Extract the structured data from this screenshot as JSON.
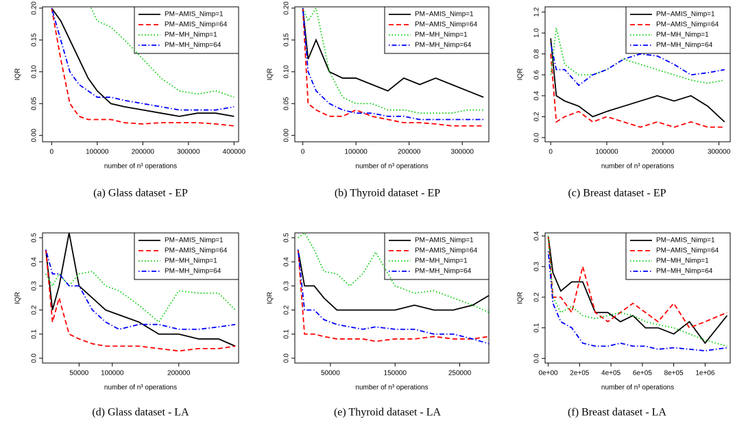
{
  "chart_data": [
    {
      "type": "line",
      "caption": "(a) Glass dataset - EP",
      "xlabel": "number of n³ operations",
      "ylabel": "IQR",
      "xlim": [
        -20000,
        410000
      ],
      "ylim": [
        -0.01,
        0.202
      ],
      "xticks": [
        0,
        100000,
        200000,
        300000,
        400000
      ],
      "yticks": [
        {
          "value": 0,
          "label": "0.00"
        },
        0.05,
        {
          "value": 0.1,
          "label": "0.10"
        },
        0.15,
        {
          "value": 0.2,
          "label": "0.20"
        }
      ],
      "legend": "top-right",
      "x": [
        0,
        20000,
        40000,
        60000,
        80000,
        100000,
        130000,
        160000,
        200000,
        240000,
        280000,
        320000,
        360000,
        400000
      ],
      "series": [
        {
          "name": "PM−AMIS_Nimp=1",
          "color": "#000000",
          "dash": "solid",
          "values": [
            0.2,
            0.18,
            0.15,
            0.12,
            0.09,
            0.07,
            0.05,
            0.045,
            0.04,
            0.035,
            0.03,
            0.035,
            0.035,
            0.03
          ]
        },
        {
          "name": "PM−AMIS_Nimp=64",
          "color": "#ff0000",
          "dash": "dashed",
          "values": [
            0.2,
            0.12,
            0.05,
            0.03,
            0.025,
            0.025,
            0.025,
            0.02,
            0.018,
            0.02,
            0.02,
            0.02,
            0.018,
            0.015
          ]
        },
        {
          "name": "PM−MH_Nimp=1",
          "color": "#00cc00",
          "dash": "dotted",
          "values": [
            0.21,
            0.21,
            0.21,
            0.21,
            0.21,
            0.18,
            0.17,
            0.15,
            0.12,
            0.09,
            0.07,
            0.065,
            0.07,
            0.06
          ]
        },
        {
          "name": "PM−MH_Nimp=64",
          "color": "#0000ff",
          "dash": "dotdash",
          "values": [
            0.2,
            0.15,
            0.1,
            0.08,
            0.07,
            0.06,
            0.06,
            0.055,
            0.05,
            0.045,
            0.04,
            0.04,
            0.04,
            0.045
          ]
        }
      ]
    },
    {
      "type": "line",
      "caption": "(b) Thyroid dataset - EP",
      "xlabel": "number of n³ operations",
      "ylabel": "IQR",
      "xlim": [
        -15000,
        350000
      ],
      "ylim": [
        -0.01,
        0.202
      ],
      "xticks": [
        0,
        100000,
        200000,
        300000
      ],
      "yticks": [
        {
          "value": 0,
          "label": "0.00"
        },
        0.05,
        {
          "value": 0.1,
          "label": "0.10"
        },
        0.15,
        {
          "value": 0.2,
          "label": "0.20"
        }
      ],
      "legend": "top-right",
      "x": [
        0,
        10000,
        25000,
        50000,
        75000,
        100000,
        130000,
        160000,
        190000,
        220000,
        250000,
        280000,
        310000,
        340000
      ],
      "series": [
        {
          "name": "PM−AMIS_Nimp=1",
          "color": "#000000",
          "dash": "solid",
          "values": [
            0.2,
            0.12,
            0.15,
            0.1,
            0.09,
            0.09,
            0.08,
            0.07,
            0.09,
            0.08,
            0.09,
            0.08,
            0.07,
            0.06
          ]
        },
        {
          "name": "PM−AMIS_Nimp=64",
          "color": "#ff0000",
          "dash": "dashed",
          "values": [
            0.2,
            0.05,
            0.04,
            0.03,
            0.03,
            0.04,
            0.03,
            0.025,
            0.02,
            0.02,
            0.018,
            0.015,
            0.015,
            0.015
          ]
        },
        {
          "name": "PM−MH_Nimp=1",
          "color": "#00cc00",
          "dash": "dotted",
          "values": [
            0.2,
            0.18,
            0.2,
            0.1,
            0.06,
            0.05,
            0.05,
            0.04,
            0.04,
            0.035,
            0.035,
            0.035,
            0.04,
            0.04
          ]
        },
        {
          "name": "PM−MH_Nimp=64",
          "color": "#0000ff",
          "dash": "dotdash",
          "values": [
            0.2,
            0.1,
            0.07,
            0.05,
            0.04,
            0.035,
            0.035,
            0.03,
            0.03,
            0.025,
            0.025,
            0.025,
            0.025,
            0.025
          ]
        }
      ]
    },
    {
      "type": "line",
      "caption": "(c) Breast dataset - EP",
      "xlabel": "number of n³ operations",
      "ylabel": "IQR",
      "xlim": [
        -10000,
        320000
      ],
      "ylim": [
        -0.04,
        1.25
      ],
      "xticks": [
        0,
        100000,
        200000,
        300000
      ],
      "yticks": [
        {
          "value": 0,
          "label": "0.0"
        },
        0.2,
        0.4,
        0.6,
        0.8,
        {
          "value": 1,
          "label": "1.0"
        },
        1.2
      ],
      "legend": "top-right",
      "x": [
        0,
        10000,
        25000,
        50000,
        75000,
        100000,
        130000,
        160000,
        190000,
        220000,
        250000,
        280000,
        310000
      ],
      "series": [
        {
          "name": "PM−AMIS_Nimp=1",
          "color": "#000000",
          "dash": "solid",
          "values": [
            0.95,
            0.4,
            0.35,
            0.3,
            0.2,
            0.25,
            0.3,
            0.35,
            0.4,
            0.35,
            0.4,
            0.3,
            0.15
          ]
        },
        {
          "name": "PM−AMIS_Nimp=64",
          "color": "#ff0000",
          "dash": "dashed",
          "values": [
            0.8,
            0.15,
            0.2,
            0.25,
            0.15,
            0.2,
            0.15,
            0.1,
            0.15,
            0.1,
            0.15,
            0.1,
            0.1
          ]
        },
        {
          "name": "PM−MH_Nimp=1",
          "color": "#00cc00",
          "dash": "dotted",
          "values": [
            0.6,
            1.05,
            0.7,
            0.6,
            0.6,
            0.65,
            0.75,
            0.7,
            0.65,
            0.6,
            0.55,
            0.52,
            0.55
          ]
        },
        {
          "name": "PM−MH_Nimp=64",
          "color": "#0000ff",
          "dash": "dotdash",
          "values": [
            0.9,
            0.65,
            0.65,
            0.5,
            0.6,
            0.65,
            0.75,
            0.8,
            0.78,
            0.7,
            0.6,
            0.62,
            0.65
          ]
        }
      ]
    },
    {
      "type": "line",
      "caption": "(d) Glass dataset - LA",
      "xlabel": "number of n³ operations",
      "ylabel": "IQR",
      "xlim": [
        -5000,
        290000
      ],
      "ylim": [
        -0.02,
        0.52
      ],
      "xticks": [
        50000,
        100000,
        200000
      ],
      "yticks": [
        {
          "value": 0,
          "label": "0.0"
        },
        0.1,
        0.2,
        0.3,
        0.4,
        0.5
      ],
      "legend": "top-right",
      "x": [
        0,
        10000,
        20000,
        35000,
        50000,
        70000,
        90000,
        110000,
        140000,
        170000,
        200000,
        230000,
        260000,
        285000
      ],
      "series": [
        {
          "name": "PM−AMIS_Nimp=1",
          "color": "#000000",
          "dash": "solid",
          "values": [
            0.45,
            0.2,
            0.3,
            0.52,
            0.3,
            0.25,
            0.2,
            0.18,
            0.15,
            0.1,
            0.1,
            0.08,
            0.08,
            0.05
          ]
        },
        {
          "name": "PM−AMIS_Nimp=64",
          "color": "#ff0000",
          "dash": "dashed",
          "values": [
            0.45,
            0.15,
            0.25,
            0.1,
            0.08,
            0.06,
            0.05,
            0.05,
            0.05,
            0.04,
            0.03,
            0.04,
            0.04,
            0.05
          ]
        },
        {
          "name": "PM−MH_Nimp=1",
          "color": "#00cc00",
          "dash": "dotted",
          "values": [
            0.35,
            0.3,
            0.35,
            0.3,
            0.35,
            0.36,
            0.3,
            0.28,
            0.22,
            0.15,
            0.28,
            0.27,
            0.27,
            0.2
          ]
        },
        {
          "name": "PM−MH_Nimp=64",
          "color": "#0000ff",
          "dash": "dotdash",
          "values": [
            0.45,
            0.35,
            0.35,
            0.3,
            0.3,
            0.2,
            0.15,
            0.12,
            0.14,
            0.14,
            0.12,
            0.12,
            0.13,
            0.14
          ]
        }
      ]
    },
    {
      "type": "line",
      "caption": "(e) Thyroid dataset - LA",
      "xlabel": "number of n³ operations",
      "ylabel": "IQR",
      "xlim": [
        -5000,
        295000
      ],
      "ylim": [
        -0.02,
        0.52
      ],
      "xticks": [
        50000,
        150000,
        250000
      ],
      "yticks": [
        {
          "value": 0,
          "label": "0.0"
        },
        0.1,
        0.2,
        0.3,
        0.4,
        0.5
      ],
      "legend": "top-right",
      "x": [
        0,
        10000,
        25000,
        40000,
        60000,
        80000,
        100000,
        120000,
        150000,
        180000,
        210000,
        240000,
        270000,
        295000
      ],
      "series": [
        {
          "name": "PM−AMIS_Nimp=1",
          "color": "#000000",
          "dash": "solid",
          "values": [
            0.45,
            0.3,
            0.3,
            0.25,
            0.2,
            0.2,
            0.2,
            0.2,
            0.2,
            0.22,
            0.2,
            0.2,
            0.22,
            0.26
          ]
        },
        {
          "name": "PM−AMIS_Nimp=64",
          "color": "#ff0000",
          "dash": "dashed",
          "values": [
            0.45,
            0.1,
            0.1,
            0.09,
            0.08,
            0.08,
            0.08,
            0.07,
            0.08,
            0.08,
            0.09,
            0.08,
            0.08,
            0.09
          ]
        },
        {
          "name": "PM−MH_Nimp=1",
          "color": "#00cc00",
          "dash": "dotted",
          "values": [
            0.5,
            0.52,
            0.45,
            0.36,
            0.35,
            0.3,
            0.35,
            0.44,
            0.3,
            0.27,
            0.28,
            0.25,
            0.22,
            0.19
          ]
        },
        {
          "name": "PM−MH_Nimp=64",
          "color": "#0000ff",
          "dash": "dotdash",
          "values": [
            0.45,
            0.2,
            0.2,
            0.16,
            0.14,
            0.13,
            0.12,
            0.13,
            0.12,
            0.12,
            0.1,
            0.1,
            0.08,
            0.06
          ]
        }
      ]
    },
    {
      "type": "line",
      "caption": "(f) Breast dataset - LA",
      "xlabel": "number of n³ operations",
      "ylabel": "IQR",
      "xlim": [
        -20000,
        1160000
      ],
      "ylim": [
        -0.015,
        0.41
      ],
      "xticks": [
        {
          "value": 0,
          "label": "0e+00"
        },
        {
          "value": 200000,
          "label": "2e+05"
        },
        {
          "value": 400000,
          "label": "4e+05"
        },
        {
          "value": 600000,
          "label": "6e+05"
        },
        {
          "value": 800000,
          "label": "8e+05"
        },
        {
          "value": 1000000,
          "label": "1e+06"
        }
      ],
      "yticks": [
        {
          "value": 0,
          "label": "0.0"
        },
        0.1,
        0.2,
        0.3,
        0.4
      ],
      "legend": "top-right",
      "x": [
        0,
        30000,
        80000,
        150000,
        220000,
        300000,
        380000,
        460000,
        540000,
        620000,
        700000,
        800000,
        900000,
        1000000,
        1140000
      ],
      "series": [
        {
          "name": "PM−AMIS_Nimp=1",
          "color": "#000000",
          "dash": "solid",
          "values": [
            0.4,
            0.28,
            0.22,
            0.25,
            0.25,
            0.15,
            0.15,
            0.12,
            0.14,
            0.1,
            0.1,
            0.08,
            0.12,
            0.05,
            0.14
          ]
        },
        {
          "name": "PM−AMIS_Nimp=64",
          "color": "#ff0000",
          "dash": "dashed",
          "values": [
            0.4,
            0.2,
            0.2,
            0.15,
            0.3,
            0.15,
            0.12,
            0.15,
            0.18,
            0.15,
            0.12,
            0.18,
            0.1,
            0.12,
            0.15
          ]
        },
        {
          "name": "PM−MH_Nimp=1",
          "color": "#00cc00",
          "dash": "dotted",
          "values": [
            0.4,
            0.2,
            0.15,
            0.17,
            0.14,
            0.13,
            0.14,
            0.15,
            0.14,
            0.12,
            0.11,
            0.1,
            0.08,
            0.06,
            0.04
          ]
        },
        {
          "name": "PM−MH_Nimp=64",
          "color": "#0000ff",
          "dash": "dotdash",
          "values": [
            0.35,
            0.18,
            0.12,
            0.1,
            0.05,
            0.04,
            0.04,
            0.05,
            0.04,
            0.04,
            0.03,
            0.035,
            0.03,
            0.025,
            0.035
          ]
        }
      ]
    }
  ]
}
